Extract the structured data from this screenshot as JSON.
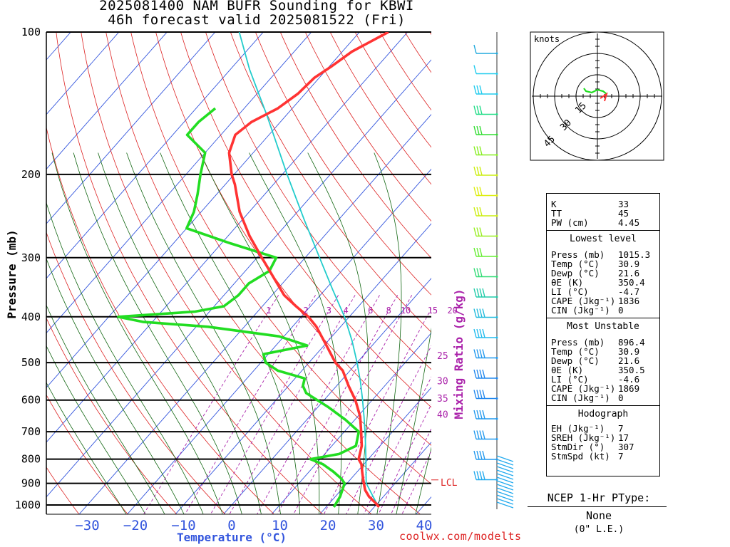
{
  "title_line1": "2025081400 NAM BUFR Sounding for KBWI",
  "title_line2": "46h forecast valid 2025081522 (Fri)",
  "credit": "coolwx.com/modelts",
  "lcl_label": "LCL",
  "ptype": {
    "title": "NCEP 1-Hr PType:",
    "value": "None",
    "accum": "(0\" L.E.)"
  },
  "hodograph": {
    "units_label": "knots",
    "ring_labels": [
      "15",
      "30",
      "45"
    ]
  },
  "indices": {
    "top": [
      {
        "label": "K",
        "value": "33"
      },
      {
        "label": "TT",
        "value": "45"
      },
      {
        "label": "PW (cm)",
        "value": "4.45"
      }
    ],
    "lowest_title": "Lowest level",
    "lowest": [
      {
        "label": "Press (mb)",
        "value": "1015.3"
      },
      {
        "label": "Temp (°C)",
        "value": "30.9"
      },
      {
        "label": "Dewp (°C)",
        "value": "21.6"
      },
      {
        "label": "θE (K)",
        "value": "350.4"
      },
      {
        "label": "LI (°C)",
        "value": "-4.7"
      },
      {
        "label": "CAPE (Jkg⁻¹)",
        "value": "1836"
      },
      {
        "label": "CIN (Jkg⁻¹)",
        "value": "0"
      }
    ],
    "mu_title": "Most Unstable",
    "mu": [
      {
        "label": "Press (mb)",
        "value": "896.4"
      },
      {
        "label": "Temp (°C)",
        "value": "30.9"
      },
      {
        "label": "Dewp (°C)",
        "value": "21.6"
      },
      {
        "label": "θE (K)",
        "value": "350.5"
      },
      {
        "label": "LI (°C)",
        "value": "-4.6"
      },
      {
        "label": "CAPE (Jkg⁻¹)",
        "value": "1869"
      },
      {
        "label": "CIN (Jkg⁻¹)",
        "value": "0"
      }
    ],
    "hodo_title": "Hodograph",
    "hodo": [
      {
        "label": "EH (Jkg⁻¹)",
        "value": "7"
      },
      {
        "label": "SREH (Jkg⁻¹)",
        "value": "17"
      },
      {
        "label": "StmDir (°)",
        "value": "307"
      },
      {
        "label": "StmSpd (kt)",
        "value": "7"
      }
    ]
  },
  "colors": {
    "temp": "#ff3333",
    "dewpoint": "#22dd22",
    "parcel": "#22cccc",
    "isotherm": "#3355dd",
    "dry_adiabat": "#dd2222",
    "moist_adiabat": "#116611",
    "mixing_ratio": "#aa22aa"
  },
  "chart_data": {
    "type": "skew-t",
    "ylabel": "Pressure (mb)",
    "xlabel": "Temperature (°C)",
    "mixing_ratio_label": "Mixing Ratio (g/kg)",
    "pressure_ticks": [
      100,
      200,
      300,
      400,
      500,
      600,
      700,
      800,
      900,
      1000
    ],
    "temperature_ticks": [
      -30,
      -20,
      -10,
      0,
      10,
      20,
      30,
      40
    ],
    "temperature_range": [
      -38,
      42
    ],
    "pressure_range": [
      1050,
      100
    ],
    "mixing_ratio_lines": [
      1,
      2,
      3,
      4,
      6,
      8,
      10,
      15,
      20,
      25,
      30,
      35,
      40
    ],
    "series": [
      {
        "name": "Temperature",
        "pressure": [
          1010,
          990,
          960,
          930,
          900,
          880,
          850,
          820,
          800,
          780,
          750,
          700,
          650,
          600,
          560,
          520,
          500,
          460,
          420,
          400,
          380,
          360,
          330,
          300,
          270,
          240,
          210,
          200,
          180,
          165,
          155,
          145,
          135,
          125,
          118,
          110,
          100
        ],
        "temperature": [
          31.0,
          29.5,
          27.0,
          25.0,
          23.5,
          22.5,
          21.0,
          19.5,
          18.0,
          17.3,
          16.2,
          13.5,
          10.5,
          6.5,
          2.5,
          -1.5,
          -4.5,
          -9.5,
          -15.0,
          -18.5,
          -23.0,
          -27.5,
          -33.0,
          -39.0,
          -45.5,
          -52.0,
          -58.0,
          -60.5,
          -65.0,
          -67.0,
          -66.0,
          -63.0,
          -61.5,
          -61.0,
          -59.5,
          -58.0,
          -54.0
        ]
      },
      {
        "name": "Dewpoint",
        "pressure": [
          1010,
          960,
          900,
          880,
          850,
          820,
          800,
          780,
          750,
          700,
          660,
          620,
          580,
          560,
          540,
          520,
          500,
          480,
          460,
          440,
          420,
          410,
          400,
          390,
          380,
          360,
          340,
          320,
          300,
          280,
          260,
          240,
          220,
          200,
          180,
          165,
          155,
          145
        ],
        "temperature": [
          21.6,
          21.0,
          19.5,
          18.0,
          15.0,
          11.5,
          8.0,
          13.0,
          15.0,
          13.0,
          8.0,
          2.0,
          -5.0,
          -7.0,
          -8.0,
          -15.0,
          -19.0,
          -21.0,
          -13.5,
          -21.0,
          -37.5,
          -52.0,
          -58.0,
          -43.0,
          -38.0,
          -37.0,
          -37.0,
          -35.0,
          -36.0,
          -48.0,
          -60.0,
          -61.5,
          -64.0,
          -67.0,
          -70.0,
          -77.0,
          -77.0,
          -76.0
        ]
      },
      {
        "name": "Parcel",
        "pressure": [
          1010,
          900,
          850,
          800,
          750,
          700,
          650,
          600,
          550,
          500,
          450,
          400,
          350,
          300,
          250,
          200,
          150,
          120,
          100
        ],
        "temperature": [
          30.9,
          24.0,
          21.8,
          19.5,
          17.0,
          14.3,
          11.3,
          8.0,
          4.3,
          0.0,
          -5.0,
          -11.0,
          -18.5,
          -27.0,
          -37.0,
          -49.0,
          -64.0,
          -76.0,
          -85.0
        ]
      }
    ]
  }
}
